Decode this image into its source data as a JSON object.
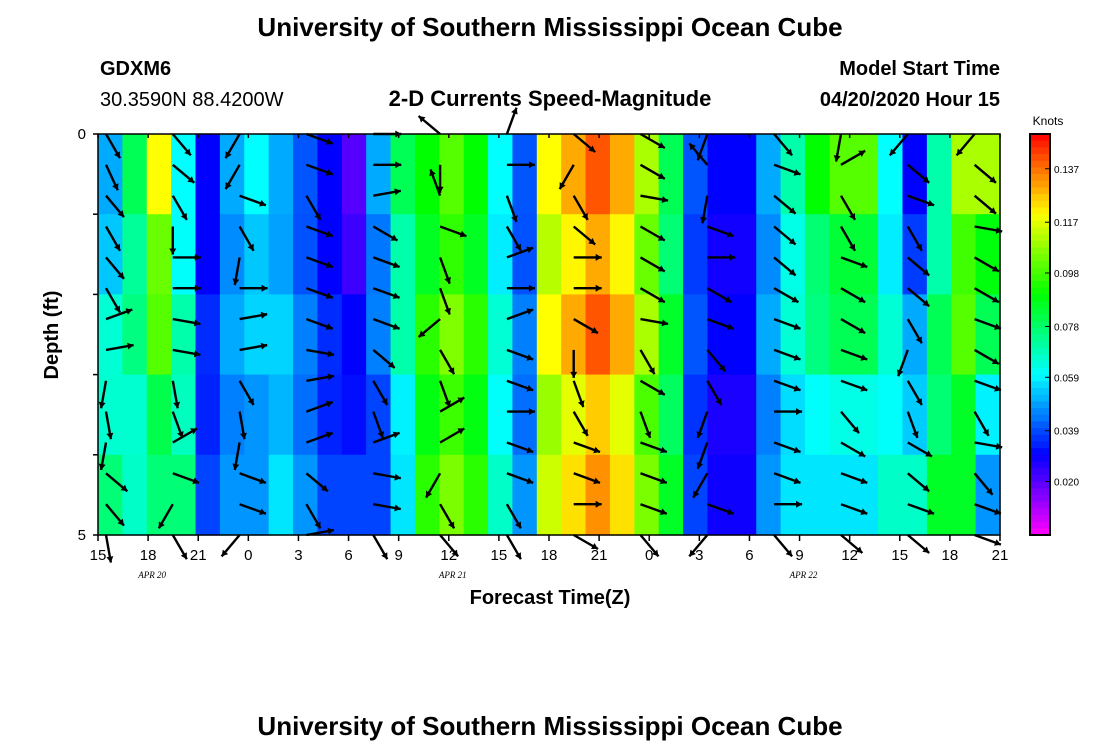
{
  "header": {
    "title": "University of Southern Mississippi Ocean Cube",
    "footer_title": "University of Southern Mississippi Ocean Cube",
    "station": "GDXM6",
    "coords": "30.3590N 88.4200W",
    "subtitle": "2-D Currents Speed-Magnitude",
    "model_start_label": "Model Start Time",
    "model_start_value": "04/20/2020 Hour 15"
  },
  "chart_data": {
    "type": "heatmap",
    "title": "2-D Currents Speed-Magnitude",
    "xlabel": "Forecast Time(Z)",
    "ylabel": "Depth (ft)",
    "ylim": [
      0,
      5
    ],
    "y_ticks": [
      "0",
      "5"
    ],
    "x_ticks": [
      "15",
      "18",
      "21",
      "0",
      "3",
      "6",
      "9",
      "12",
      "15",
      "18",
      "21",
      "0",
      "3",
      "6",
      "9",
      "12",
      "15",
      "18",
      "21"
    ],
    "date_labels": [
      {
        "text": "APR 20",
        "tick_index": 1
      },
      {
        "text": "APR 21",
        "tick_index": 7
      },
      {
        "text": "APR 22",
        "tick_index": 14
      }
    ],
    "colorbar": {
      "unit": "Knots",
      "min": 0.0,
      "max": 0.15,
      "ticks": [
        "0.137",
        "0.117",
        "0.098",
        "0.078",
        "0.059",
        "0.039",
        "0.020"
      ]
    },
    "speed_profile": [
      [
        0.05,
        0.08
      ],
      [
        0.08,
        0.07
      ],
      [
        0.12,
        0.08
      ],
      [
        0.06,
        0.08
      ],
      [
        0.03,
        0.04
      ],
      [
        0.05,
        0.05
      ],
      [
        0.06,
        0.05
      ],
      [
        0.05,
        0.06
      ],
      [
        0.04,
        0.05
      ],
      [
        0.03,
        0.04
      ],
      [
        0.02,
        0.04
      ],
      [
        0.05,
        0.04
      ],
      [
        0.08,
        0.06
      ],
      [
        0.09,
        0.1
      ],
      [
        0.1,
        0.11
      ],
      [
        0.09,
        0.1
      ],
      [
        0.06,
        0.07
      ],
      [
        0.04,
        0.05
      ],
      [
        0.12,
        0.12
      ],
      [
        0.13,
        0.13
      ],
      [
        0.14,
        0.14
      ],
      [
        0.13,
        0.13
      ],
      [
        0.11,
        0.11
      ],
      [
        0.08,
        0.09
      ],
      [
        0.04,
        0.04
      ],
      [
        0.03,
        0.03
      ],
      [
        0.03,
        0.03
      ],
      [
        0.05,
        0.05
      ],
      [
        0.07,
        0.06
      ],
      [
        0.09,
        0.06
      ],
      [
        0.1,
        0.06
      ],
      [
        0.1,
        0.06
      ],
      [
        0.06,
        0.07
      ],
      [
        0.03,
        0.07
      ],
      [
        0.07,
        0.09
      ],
      [
        0.11,
        0.09
      ],
      [
        0.11,
        0.05
      ]
    ],
    "depth_factor": [
      1.0,
      0.93,
      1.0,
      0.9,
      0.95
    ],
    "depth_columns": [
      0.5,
      1.5,
      2.5,
      3.5,
      4.5
    ],
    "vector_times_hours": [
      0,
      4,
      8,
      12,
      16,
      20,
      24,
      28,
      32,
      36,
      40,
      44,
      48,
      52
    ],
    "vector_angles_deg": [
      [
        -60,
        -65,
        -50,
        -60,
        -50,
        -60,
        20,
        10,
        -100,
        -80,
        -100,
        -40,
        -50,
        -80
      ],
      [
        -50,
        -40,
        -60,
        -90,
        0,
        0,
        -10,
        -10,
        -80,
        -70,
        30,
        -20,
        -120,
        -60
      ],
      [
        -120,
        -120,
        -20,
        -60,
        -100,
        0,
        10,
        10,
        -60,
        -80,
        -100,
        -20,
        -20,
        -130
      ],
      [
        -20,
        -20,
        -60,
        -20,
        -20,
        -20,
        -20,
        -10,
        10,
        20,
        20,
        -40,
        -60,
        10
      ],
      [
        0,
        0,
        10,
        -30,
        -20,
        -20,
        -20,
        -40,
        -60,
        -70,
        20,
        -10,
        -10,
        -60
      ],
      [
        140,
        -90,
        110,
        -20,
        -70,
        -70,
        -140,
        -60,
        -70,
        30,
        30,
        -120,
        -60,
        -50
      ],
      [
        70,
        0,
        -70,
        -60,
        20,
        0,
        20,
        -20,
        -20,
        0,
        -20,
        -20,
        -60,
        -60
      ],
      [
        -40,
        -120,
        -60,
        -40,
        0,
        0,
        -30,
        -90,
        -70,
        -60,
        -20,
        -20,
        0,
        -30
      ],
      [
        -30,
        -30,
        -10,
        -30,
        -30,
        -30,
        -10,
        -60,
        -30,
        -70,
        -20,
        -20,
        -20,
        -50
      ],
      [
        -110,
        130,
        -100,
        -20,
        0,
        -30,
        -20,
        -50,
        -60,
        -110,
        -110,
        -120,
        -20,
        -130
      ],
      [
        -50,
        -20,
        -40,
        -40,
        -40,
        -30,
        -20,
        -20,
        -20,
        0,
        -20,
        -20,
        0,
        -50
      ],
      [
        -100,
        30,
        -60,
        -60,
        -20,
        -30,
        -30,
        -20,
        -20,
        -50,
        -30,
        -20,
        -20,
        -40
      ],
      [
        -130,
        -40,
        -20,
        -60,
        -40,
        -40,
        -60,
        -110,
        -60,
        -70,
        -30,
        -40,
        -20,
        -40
      ],
      [
        -130,
        -40,
        -40,
        -10,
        -30,
        -30,
        -20,
        -30,
        -20,
        -60,
        -10,
        -50,
        -20,
        -20
      ]
    ]
  }
}
